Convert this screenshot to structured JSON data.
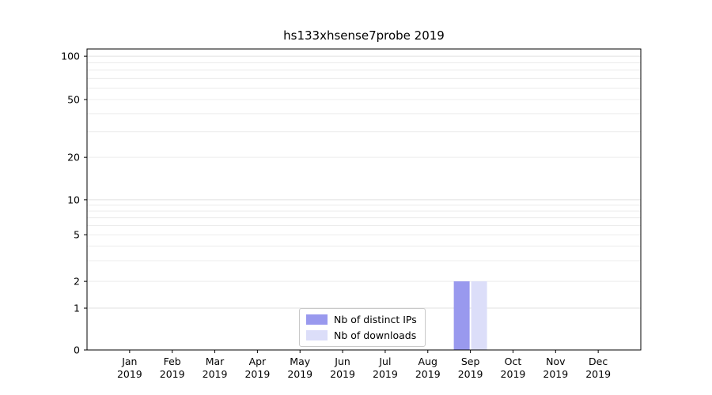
{
  "chart_data": {
    "type": "bar",
    "title": "hs133xhsense7probe 2019",
    "categories": [
      "Jan",
      "Feb",
      "Mar",
      "Apr",
      "May",
      "Jun",
      "Jul",
      "Aug",
      "Sep",
      "Oct",
      "Nov",
      "Dec"
    ],
    "year": "2019",
    "series": [
      {
        "name": "Nb of distinct IPs",
        "color": "#9999ee",
        "values": [
          0,
          0,
          0,
          0,
          0,
          0,
          0,
          0,
          2,
          0,
          0,
          0
        ]
      },
      {
        "name": "Nb of downloads",
        "color": "#dcdef9",
        "values": [
          0,
          0,
          0,
          0,
          0,
          0,
          0,
          0,
          2,
          0,
          0,
          0
        ]
      }
    ],
    "yticks": [
      0,
      1,
      2,
      5,
      10,
      20,
      50,
      100
    ],
    "ylim": [
      0,
      112
    ],
    "yscale": "symlog",
    "grid": "horizontal-log-minor",
    "legend_position": "bottom-center-inside",
    "colors": {
      "grid_minor": "#ececec",
      "grid_major": "#e0e0e0",
      "axis": "#000000",
      "background": "#ffffff"
    }
  }
}
